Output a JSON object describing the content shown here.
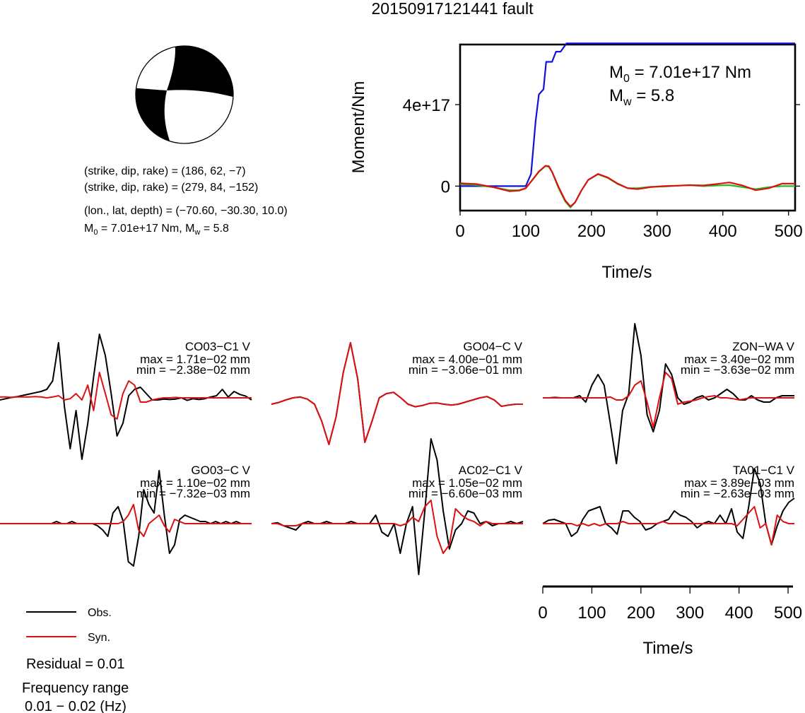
{
  "title": "20150917121441 fault",
  "mechanism": {
    "line1": "(strike, dip, rake) = (186, 62, −7)",
    "line2": "(strike, dip, rake) = (279, 84, −152)",
    "line3": "(lon., lat, depth) = (−70.60, −30.30, 10.0)",
    "m0_prefix": "M",
    "m0_sub": "0",
    "m0_rest": " = 7.01e+17 Nm, M",
    "mw_sub": "w",
    "mw_rest": " = 5.8"
  },
  "moment_plot": {
    "ylabel": "Moment/Nm",
    "xlabel": "Time/s",
    "m0_label": {
      "main": "M",
      "sub": "0",
      "rest": " = 7.01e+17 Nm"
    },
    "mw_label": {
      "main": "M",
      "sub": "w",
      "rest": " = 5.8"
    }
  },
  "waveform_axis": {
    "xlabel": "Time/s"
  },
  "legend": {
    "obs": "Obs.",
    "syn": "Syn."
  },
  "residual": "Residual = 0.01",
  "frequency_label": "Frequency range",
  "frequency_value": "0.01 − 0.02 (Hz)",
  "colors": {
    "obs": "#000000",
    "syn": "#dd1111",
    "moment": "#1111dd",
    "synthetic_rate": "#22bb22",
    "beachball_fill": "#000000"
  },
  "chart_data": [
    {
      "type": "line",
      "xlabel": "Time/s",
      "ylabel": "Moment/Nm",
      "xlim": [
        0,
        510
      ],
      "ylim": [
        -1.2e+17,
        6.95e+17
      ],
      "xticks": [
        {
          "value": 0,
          "label": "0"
        },
        {
          "value": 100,
          "label": "100"
        },
        {
          "value": 200,
          "label": "200"
        },
        {
          "value": 300,
          "label": "300"
        },
        {
          "value": 400,
          "label": "400"
        },
        {
          "value": 500,
          "label": "500"
        }
      ],
      "yticks": [
        {
          "value": 0,
          "label": "0"
        },
        {
          "value": 4e+17,
          "label": "4e+17"
        }
      ],
      "series": [
        {
          "color": "#1111dd",
          "x": [
            0,
            100,
            108,
            115,
            120,
            127,
            131,
            140,
            146,
            153,
            162,
            510
          ],
          "y": [
            0,
            0,
            6e+16,
            3.2e+17,
            4.5e+17,
            4.75e+17,
            6.1e+17,
            6.1e+17,
            6.6e+17,
            6.6e+17,
            7.01e+17,
            7.01e+17
          ]
        },
        {
          "color": "#22bb22",
          "x": [
            0,
            25,
            50,
            75,
            90,
            100,
            110,
            120,
            130,
            135,
            140,
            150,
            160,
            168,
            175,
            185,
            195,
            210,
            225,
            240,
            255,
            270,
            290,
            310,
            330,
            350,
            370,
            390,
            410,
            430,
            450,
            470,
            490,
            510
          ],
          "y": [
            1e+16,
            5000000000000000.0,
            -5000000000000000.0,
            -2e+16,
            -2e+16,
            -1e+16,
            3e+16,
            7e+16,
            9.8e+16,
            9.5e+16,
            7e+16,
            -1e+16,
            -7.5e+16,
            -1.05e+17,
            -8e+16,
            -2e+16,
            3e+16,
            5.8e+16,
            4e+16,
            1e+16,
            -1e+16,
            -1e+16,
            -3000000000000000.0,
            -2000000000000000.0,
            2000000000000000.0,
            5000000000000000.0,
            0,
            3000000000000000.0,
            5000000000000000.0,
            -5000000000000000.0,
            -1.5e+16,
            -5000000000000000.0,
            0,
            0
          ]
        },
        {
          "color": "#dd1111",
          "x": [
            0,
            25,
            50,
            75,
            90,
            100,
            110,
            120,
            130,
            135,
            140,
            150,
            160,
            168,
            175,
            185,
            195,
            210,
            225,
            240,
            255,
            270,
            290,
            310,
            330,
            350,
            370,
            390,
            410,
            430,
            450,
            470,
            490,
            510
          ],
          "y": [
            1.4e+16,
            1e+16,
            -5000000000000000.0,
            -2.5e+16,
            -2.2e+16,
            -1e+16,
            3e+16,
            7.2e+16,
            1e+17,
            9.8e+16,
            7e+16,
            -5000000000000000.0,
            -7e+16,
            -1e+17,
            -8e+16,
            -2e+16,
            3e+16,
            6e+16,
            4.2e+16,
            1.2e+16,
            -1e+16,
            -1.5e+16,
            -5000000000000000.0,
            0,
            2000000000000000.0,
            5000000000000000.0,
            3000000000000000.0,
            1e+16,
            1.8e+16,
            3000000000000000.0,
            -2e+16,
            -1e+16,
            1.2e+16,
            1.2e+16
          ]
        }
      ]
    },
    {
      "type": "line",
      "xlabel": "Time/s",
      "xlim": [
        0,
        510
      ],
      "xticks": [
        {
          "value": 0,
          "label": "0"
        },
        {
          "value": 100,
          "label": "100"
        },
        {
          "value": 200,
          "label": "200"
        },
        {
          "value": 300,
          "label": "300"
        },
        {
          "value": 400,
          "label": "400"
        },
        {
          "value": 500,
          "label": "500"
        }
      ],
      "stations": [
        {
          "name": "CO03−C1 V",
          "max": "max = 1.71e−02 mm",
          "min": "min = −2.38e−02 mm",
          "obs": [
            -0.05,
            -0.02,
            0.01,
            0.03,
            0.06,
            0.09,
            0.12,
            0.15,
            0.2,
            0.4,
            1.3,
            -0.2,
            -1.2,
            -0.3,
            -1.45,
            -0.6,
            0.5,
            1.5,
            1.0,
            0.1,
            -0.9,
            -0.6,
            0.05,
            0.2,
            0.25,
            0.1,
            -0.05,
            -0.05,
            -0.03,
            -0.04,
            -0.03,
            0.0,
            -0.06,
            -0.02,
            -0.04,
            -0.02,
            0.02,
            0.05,
            0.2,
            0.02,
            0.15,
            0.08,
            0.04,
            -0.05
          ],
          "syn": [
            0.02,
            0.02,
            0.01,
            0.02,
            0.02,
            0.02,
            0.03,
            0.02,
            0.0,
            0.02,
            0.05,
            -0.05,
            -0.02,
            0.1,
            -0.05,
            0.3,
            -0.3,
            0.6,
            0.1,
            -0.4,
            -0.5,
            0.1,
            0.4,
            0.3,
            -0.1,
            -0.1,
            -0.05,
            -0.02,
            0.0,
            0.0,
            0.01,
            0.0,
            0.0,
            0.0,
            0.0,
            0.0,
            0.0,
            0.0,
            0.0,
            0.0,
            0.0,
            0.0,
            0.0,
            0.0
          ]
        },
        {
          "name": "GO04−C V",
          "max": "max = 4.00e−01 mm",
          "min": "min = −3.06e−01 mm",
          "obs": [
            0.0,
            0.04,
            0.1,
            0.15,
            0.17,
            0.12,
            0.0,
            -0.4,
            -0.95,
            -0.3,
            0.75,
            1.45,
            0.6,
            -0.9,
            -0.4,
            0.15,
            0.25,
            0.28,
            0.15,
            0.0,
            -0.06,
            -0.03,
            0.02,
            0.03,
            0.0,
            -0.02,
            0.0,
            0.05,
            0.1,
            0.15,
            0.18,
            0.1,
            -0.05,
            -0.02,
            0.0,
            0.0
          ],
          "syn": [
            0.0,
            0.04,
            0.1,
            0.15,
            0.17,
            0.12,
            0.0,
            -0.4,
            -0.95,
            -0.3,
            0.75,
            1.45,
            0.6,
            -0.9,
            -0.4,
            0.15,
            0.25,
            0.28,
            0.15,
            0.0,
            -0.06,
            -0.03,
            0.02,
            0.03,
            0.0,
            -0.02,
            0.0,
            0.05,
            0.1,
            0.15,
            0.18,
            0.1,
            -0.05,
            -0.02,
            0.0,
            0.0
          ]
        },
        {
          "name": "ZON−WA V",
          "max": "max = 3.40e−02 mm",
          "min": "min = −3.63e−02 mm",
          "obs": [
            0.0,
            0.0,
            0.01,
            0.0,
            0.0,
            0.0,
            0.05,
            -0.1,
            0.3,
            0.55,
            0.3,
            -0.6,
            -1.55,
            -0.3,
            0.1,
            1.75,
            1.0,
            -0.4,
            -0.8,
            -0.3,
            0.8,
            0.55,
            0.0,
            -0.15,
            -0.1,
            0.0,
            0.05,
            -0.05,
            0.0,
            0.1,
            0.2,
            0.1,
            -0.05,
            -0.05,
            0.05,
            -0.05,
            -0.1,
            -0.1,
            0.0,
            0.05,
            0.05,
            0.05
          ],
          "syn": [
            0.0,
            0.0,
            0.0,
            0.0,
            0.0,
            0.0,
            0.0,
            0.0,
            0.0,
            0.0,
            0.0,
            0.02,
            -0.05,
            -0.05,
            0.05,
            0.3,
            0.4,
            -0.1,
            -0.7,
            0.0,
            0.6,
            0.45,
            -0.15,
            -0.1,
            -0.08,
            -0.05,
            0.0,
            0.03,
            0.05,
            0.0,
            0.0,
            -0.02,
            -0.05,
            -0.02,
            0.0,
            0.0,
            0.0,
            0.0,
            0.0,
            0.0,
            0.0,
            0.0
          ]
        },
        {
          "name": "GO03−C V",
          "max": "max = 1.10e−02 mm",
          "min": "min = −7.32e−03 mm",
          "obs": [
            0.0,
            0.0,
            0.0,
            0.0,
            0.0,
            0.0,
            0.0,
            0.0,
            0.0,
            0.0,
            0.0,
            0.05,
            0.0,
            0.0,
            0.05,
            0.0,
            0.0,
            0.0,
            0.0,
            -0.05,
            -0.15,
            -0.3,
            0.25,
            0.4,
            0.05,
            -0.9,
            -1.0,
            -0.3,
            0.8,
            0.45,
            0.25,
            1.25,
            0.2,
            -0.7,
            -0.5,
            0.1,
            0.2,
            0.15,
            0.1,
            0.05,
            0.05,
            0.0,
            0.05,
            0.0,
            0.05,
            0.0,
            0.05,
            0.0,
            0.0,
            0.0
          ],
          "syn": [
            0.0,
            0.0,
            0.0,
            0.0,
            0.0,
            0.0,
            0.0,
            0.0,
            0.0,
            0.0,
            0.0,
            0.0,
            0.0,
            0.0,
            0.0,
            0.0,
            0.0,
            0.0,
            0.0,
            0.0,
            0.0,
            0.0,
            0.0,
            0.0,
            0.05,
            0.2,
            0.45,
            -0.15,
            -0.3,
            0.0,
            0.1,
            0.2,
            -0.05,
            -0.2,
            0.1,
            0.05,
            0.0,
            0.0,
            0.0,
            0.0,
            0.0,
            0.0,
            0.0,
            0.0,
            0.0,
            0.0,
            0.0,
            0.0,
            0.0,
            0.0
          ]
        },
        {
          "name": "AC02−C1 V",
          "max": "max = 1.05e−02 mm",
          "min": "min = −6.60e−03 mm",
          "obs": [
            0.0,
            0.02,
            -0.05,
            -0.1,
            -0.15,
            0.0,
            0.05,
            0.0,
            0.0,
            0.05,
            0.0,
            0.0,
            0.0,
            0.05,
            0.0,
            0.0,
            0.0,
            0.2,
            -0.2,
            -0.3,
            0.0,
            -0.7,
            0.0,
            0.4,
            -1.2,
            0.3,
            2.0,
            1.5,
            0.3,
            -0.6,
            -0.15,
            0.0,
            0.3,
            0.25,
            0.0,
            0.05,
            -0.05,
            0.0,
            0.0,
            0.05,
            0.0,
            0.05
          ],
          "syn": [
            0.0,
            0.0,
            -0.05,
            -0.05,
            -0.05,
            0.0,
            0.0,
            0.0,
            0.0,
            0.0,
            0.0,
            0.0,
            0.0,
            0.0,
            0.0,
            0.0,
            0.0,
            0.0,
            0.0,
            0.0,
            0.0,
            -0.05,
            0.0,
            0.15,
            0.05,
            0.4,
            0.55,
            -0.3,
            -0.7,
            -0.5,
            0.35,
            0.2,
            0.1,
            0.05,
            -0.05,
            0.05,
            0.0,
            0.0,
            0.0,
            0.0,
            0.0,
            0.0
          ]
        },
        {
          "name": "TA01−C1 V",
          "max": "max = 3.89e−03 mm",
          "min": "min = −2.63e−03 mm",
          "obs": [
            0.0,
            0.08,
            0.1,
            0.05,
            0.0,
            -0.3,
            -0.2,
            0.1,
            0.3,
            0.35,
            0.4,
            0.0,
            -0.1,
            -0.25,
            0.3,
            0.3,
            0.15,
            0.05,
            -0.15,
            -0.1,
            0.0,
            0.05,
            0.1,
            0.3,
            0.2,
            0.15,
            0.05,
            -0.1,
            0.0,
            0.05,
            0.0,
            0.2,
            0.0,
            0.35,
            -0.2,
            -0.35,
            0.4,
            1.3,
            0.95,
            0.0,
            -0.5,
            -0.05,
            0.3,
            0.5,
            0.6
          ],
          "syn": [
            0.0,
            0.0,
            0.0,
            0.0,
            0.0,
            0.0,
            -0.05,
            0.0,
            -0.05,
            0.0,
            -0.05,
            0.0,
            0.0,
            0.0,
            0.05,
            0.0,
            0.0,
            0.0,
            0.0,
            0.0,
            0.0,
            0.05,
            0.0,
            0.0,
            0.0,
            0.0,
            0.0,
            0.0,
            0.0,
            0.0,
            0.0,
            0.0,
            0.0,
            0.0,
            -0.05,
            0.1,
            0.25,
            0.4,
            -0.1,
            0.0,
            -0.5,
            0.2,
            0.05,
            0.0,
            0.0
          ]
        }
      ]
    }
  ]
}
